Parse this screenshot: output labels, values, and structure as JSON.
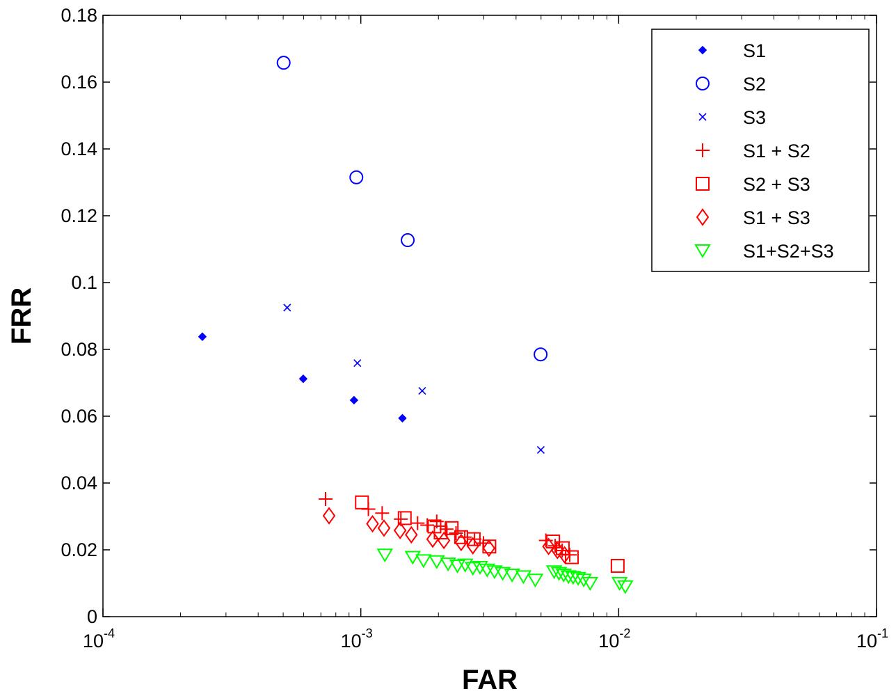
{
  "chart_data": {
    "type": "scatter",
    "title": "",
    "xlabel": "FAR",
    "ylabel": "FRR",
    "xscale": "log",
    "xlim": [
      0.0001,
      0.1
    ],
    "ylim": [
      0,
      0.18
    ],
    "x_ticks": [
      {
        "value": 0.0001,
        "base": "10",
        "exp": "-4"
      },
      {
        "value": 0.001,
        "base": "10",
        "exp": "-3"
      },
      {
        "value": 0.01,
        "base": "10",
        "exp": "-2"
      },
      {
        "value": 0.1,
        "base": "10",
        "exp": "-1"
      }
    ],
    "y_ticks": [
      {
        "value": 0,
        "label": "0"
      },
      {
        "value": 0.02,
        "label": "0.02"
      },
      {
        "value": 0.04,
        "label": "0.04"
      },
      {
        "value": 0.06,
        "label": "0.06"
      },
      {
        "value": 0.08,
        "label": "0.08"
      },
      {
        "value": 0.1,
        "label": "0.1"
      },
      {
        "value": 0.12,
        "label": "0.12"
      },
      {
        "value": 0.14,
        "label": "0.14"
      },
      {
        "value": 0.16,
        "label": "0.16"
      },
      {
        "value": 0.18,
        "label": "0.18"
      }
    ],
    "grid": false,
    "legend_position": "top-right",
    "series": [
      {
        "name": "S1",
        "marker": "dot",
        "color": "#0000ff",
        "points": [
          [
            0.000243,
            0.0838
          ],
          [
            0.000598,
            0.0712
          ],
          [
            0.000941,
            0.0648
          ],
          [
            0.00145,
            0.0594
          ]
        ]
      },
      {
        "name": "S2",
        "marker": "circle",
        "color": "#0000ff",
        "points": [
          [
            0.000502,
            0.1658
          ],
          [
            0.000961,
            0.1315
          ],
          [
            0.00152,
            0.1127
          ],
          [
            0.00498,
            0.0785
          ]
        ]
      },
      {
        "name": "S3",
        "marker": "x",
        "color": "#0000ff",
        "points": [
          [
            0.000518,
            0.0925
          ],
          [
            0.00097,
            0.0759
          ],
          [
            0.00173,
            0.0676
          ],
          [
            0.00499,
            0.0499
          ]
        ]
      },
      {
        "name": "S1 + S2",
        "marker": "plus",
        "color": "#ff0000",
        "points": [
          [
            0.00073,
            0.0352
          ],
          [
            0.00107,
            0.0322
          ],
          [
            0.00121,
            0.031
          ],
          [
            0.00143,
            0.0292
          ],
          [
            0.00166,
            0.028
          ],
          [
            0.00181,
            0.0274
          ],
          [
            0.00197,
            0.0285
          ],
          [
            0.00215,
            0.0262
          ],
          [
            0.00234,
            0.025
          ],
          [
            0.00253,
            0.0238
          ],
          [
            0.00276,
            0.0232
          ],
          [
            0.00299,
            0.022
          ],
          [
            0.00522,
            0.0228
          ],
          [
            0.00567,
            0.0212
          ],
          [
            0.00604,
            0.0198
          ],
          [
            0.00646,
            0.0185
          ]
        ]
      },
      {
        "name": "S2 + S3",
        "marker": "square",
        "color": "#ff0000",
        "points": [
          [
            0.00101,
            0.0342
          ],
          [
            0.00148,
            0.0295
          ],
          [
            0.00193,
            0.027
          ],
          [
            0.00204,
            0.0252
          ],
          [
            0.00225,
            0.0265
          ],
          [
            0.00245,
            0.0238
          ],
          [
            0.00274,
            0.0232
          ],
          [
            0.00315,
            0.021
          ],
          [
            0.00557,
            0.0225
          ],
          [
            0.00607,
            0.0205
          ],
          [
            0.00658,
            0.0178
          ],
          [
            0.00991,
            0.0152
          ]
        ]
      },
      {
        "name": "S1 + S3",
        "marker": "diamond",
        "color": "#ff0000",
        "points": [
          [
            0.000753,
            0.0302
          ],
          [
            0.00111,
            0.0278
          ],
          [
            0.00123,
            0.0265
          ],
          [
            0.00142,
            0.0258
          ],
          [
            0.00157,
            0.0245
          ],
          [
            0.0019,
            0.0232
          ],
          [
            0.0021,
            0.0228
          ],
          [
            0.00245,
            0.0222
          ],
          [
            0.00272,
            0.0212
          ],
          [
            0.00314,
            0.0205
          ],
          [
            0.00535,
            0.021
          ],
          [
            0.00579,
            0.0198
          ],
          [
            0.00617,
            0.0185
          ]
        ]
      },
      {
        "name": "S1+S2+S3",
        "marker": "triangle-down",
        "color": "#00ff00",
        "points": [
          [
            0.00124,
            0.0185
          ],
          [
            0.00159,
            0.0178
          ],
          [
            0.00175,
            0.0168
          ],
          [
            0.00197,
            0.0165
          ],
          [
            0.00218,
            0.0158
          ],
          [
            0.00237,
            0.0152
          ],
          [
            0.00254,
            0.0155
          ],
          [
            0.00272,
            0.0145
          ],
          [
            0.0029,
            0.0148
          ],
          [
            0.00309,
            0.014
          ],
          [
            0.0033,
            0.0135
          ],
          [
            0.00355,
            0.013
          ],
          [
            0.00386,
            0.0125
          ],
          [
            0.00427,
            0.012
          ],
          [
            0.00475,
            0.011
          ],
          [
            0.00562,
            0.0135
          ],
          [
            0.00587,
            0.013
          ],
          [
            0.00612,
            0.0125
          ],
          [
            0.00639,
            0.012
          ],
          [
            0.00666,
            0.0118
          ],
          [
            0.00696,
            0.0115
          ],
          [
            0.00732,
            0.011
          ],
          [
            0.00775,
            0.01
          ],
          [
            0.01008,
            0.01
          ],
          [
            0.01061,
            0.009
          ]
        ]
      }
    ]
  }
}
